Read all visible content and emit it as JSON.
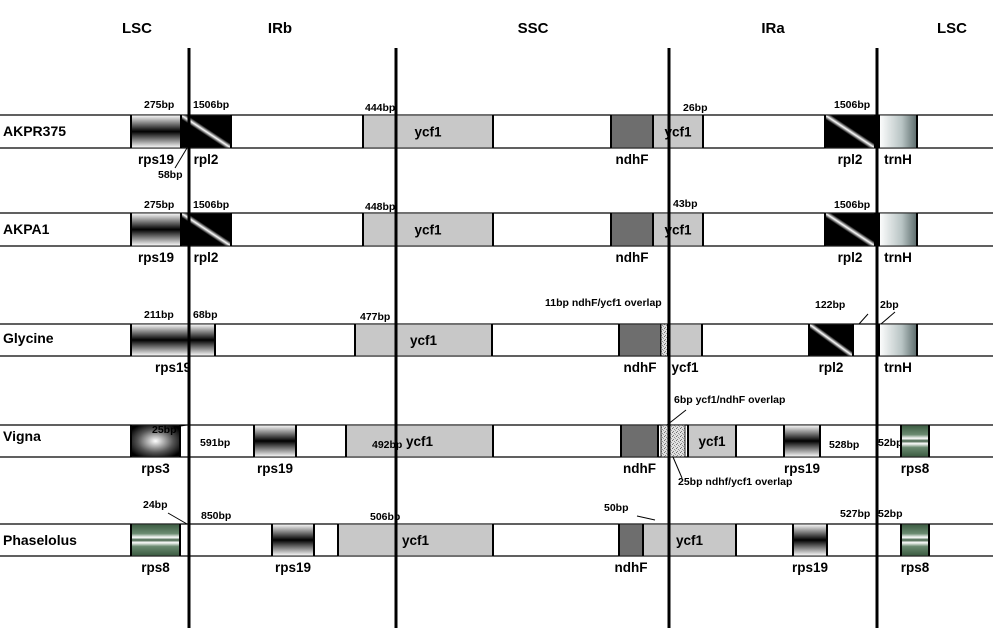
{
  "regions": [
    "LSC",
    "IRb",
    "SSC",
    "IRa",
    "LSC"
  ],
  "species": [
    {
      "name": "AKPR375",
      "genes": [
        {
          "label": "rps19",
          "pattern": "hband",
          "pos": "below"
        },
        {
          "label": "rpl2",
          "pattern": "diag",
          "pos": "below"
        },
        {
          "label": "ycf1",
          "pattern": "gray",
          "pos": "inside"
        },
        {
          "label": "ndhF",
          "pattern": "dark",
          "pos": "below"
        },
        {
          "label": "ycf1",
          "pattern": "gray",
          "pos": "inside"
        },
        {
          "label": "rpl2",
          "pattern": "diag",
          "pos": "below"
        },
        {
          "label": "trnH",
          "pattern": "fade",
          "pos": "below"
        }
      ],
      "bp": [
        "275bp",
        "1506bp",
        "444bp",
        "26bp",
        "1506bp",
        "58bp"
      ]
    },
    {
      "name": "AKPA1",
      "genes": [
        {
          "label": "rps19",
          "pattern": "hband",
          "pos": "below"
        },
        {
          "label": "rpl2",
          "pattern": "diag",
          "pos": "below"
        },
        {
          "label": "ycf1",
          "pattern": "gray",
          "pos": "inside"
        },
        {
          "label": "ndhF",
          "pattern": "dark",
          "pos": "below"
        },
        {
          "label": "ycf1",
          "pattern": "gray",
          "pos": "inside"
        },
        {
          "label": "rpl2",
          "pattern": "diag",
          "pos": "below"
        },
        {
          "label": "trnH",
          "pattern": "fade",
          "pos": "below"
        }
      ],
      "bp": [
        "275bp",
        "1506bp",
        "448bp",
        "43bp",
        "1506bp"
      ]
    },
    {
      "name": "Glycine",
      "genes": [
        {
          "label": "rps19",
          "pattern": "hband",
          "pos": "below"
        },
        {
          "label": "ycf1",
          "pattern": "gray",
          "pos": "inside"
        },
        {
          "label": "ndhF",
          "pattern": "dark",
          "pos": "below"
        },
        {
          "label": "",
          "pattern": "speckle",
          "pos": "none"
        },
        {
          "label": "ycf1",
          "pattern": "gray",
          "pos": "below"
        },
        {
          "label": "rpl2",
          "pattern": "diag",
          "pos": "below"
        },
        {
          "label": "trnH",
          "pattern": "fade",
          "pos": "below"
        }
      ],
      "bp": [
        "211bp",
        "68bp",
        "477bp",
        "11bp ndhF/ycf1 overlap",
        "122bp",
        "2bp"
      ]
    },
    {
      "name": "Vigna",
      "genes": [
        {
          "label": "rps3",
          "pattern": "radial",
          "pos": "below"
        },
        {
          "label": "rps19",
          "pattern": "hband",
          "pos": "below"
        },
        {
          "label": "ycf1",
          "pattern": "gray",
          "pos": "inside"
        },
        {
          "label": "ndhF",
          "pattern": "dark",
          "pos": "below"
        },
        {
          "label": "",
          "pattern": "speckle",
          "pos": "none"
        },
        {
          "label": "ycf1",
          "pattern": "gray",
          "pos": "inside"
        },
        {
          "label": "rps19",
          "pattern": "hband",
          "pos": "below"
        },
        {
          "label": "rps8",
          "pattern": "green",
          "pos": "below"
        }
      ],
      "bp": [
        "25bp",
        "591bp",
        "492bp",
        "6bp ycf1/ndhF overlap",
        "528bp",
        "52bp",
        "25bp ndhf/ycf1 overlap"
      ]
    },
    {
      "name": "Phaselolus",
      "genes": [
        {
          "label": "rps8",
          "pattern": "green",
          "pos": "below"
        },
        {
          "label": "rps19",
          "pattern": "hband",
          "pos": "below"
        },
        {
          "label": "ycf1",
          "pattern": "gray",
          "pos": "inside"
        },
        {
          "label": "ndhF",
          "pattern": "dark",
          "pos": "below"
        },
        {
          "label": "ycf1",
          "pattern": "gray",
          "pos": "inside"
        },
        {
          "label": "rps19",
          "pattern": "hband",
          "pos": "below"
        },
        {
          "label": "rps8",
          "pattern": "green",
          "pos": "below"
        }
      ],
      "bp": [
        "24bp",
        "850bp",
        "506bp",
        "50bp",
        "527bp",
        "52bp"
      ]
    }
  ],
  "colors": {
    "line": "#000000",
    "ycf1_fill": "#c8c8c8",
    "ndhF_fill": "#6e6e6e",
    "green_band": "#4a6a50"
  }
}
